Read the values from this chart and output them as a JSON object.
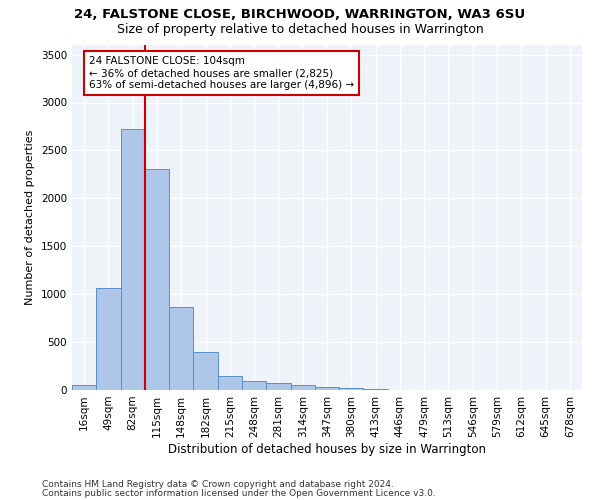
{
  "title1": "24, FALSTONE CLOSE, BIRCHWOOD, WARRINGTON, WA3 6SU",
  "title2": "Size of property relative to detached houses in Warrington",
  "xlabel": "Distribution of detached houses by size in Warrington",
  "ylabel": "Number of detached properties",
  "categories": [
    "16sqm",
    "49sqm",
    "82sqm",
    "115sqm",
    "148sqm",
    "182sqm",
    "215sqm",
    "248sqm",
    "281sqm",
    "314sqm",
    "347sqm",
    "380sqm",
    "413sqm",
    "446sqm",
    "479sqm",
    "513sqm",
    "546sqm",
    "579sqm",
    "612sqm",
    "645sqm",
    "678sqm"
  ],
  "values": [
    50,
    1060,
    2720,
    2310,
    870,
    400,
    150,
    90,
    70,
    50,
    30,
    20,
    10,
    5,
    3,
    2,
    1,
    1,
    0,
    0,
    0
  ],
  "bar_color": "#aec6e8",
  "bar_edge_color": "#5b8fc9",
  "vline_color": "#cc0000",
  "annotation_text": "24 FALSTONE CLOSE: 104sqm\n← 36% of detached houses are smaller (2,825)\n63% of semi-detached houses are larger (4,896) →",
  "annotation_box_color": "white",
  "annotation_box_edge_color": "#cc0000",
  "ylim": [
    0,
    3600
  ],
  "yticks": [
    0,
    500,
    1000,
    1500,
    2000,
    2500,
    3000,
    3500
  ],
  "footer1": "Contains HM Land Registry data © Crown copyright and database right 2024.",
  "footer2": "Contains public sector information licensed under the Open Government Licence v3.0.",
  "bg_color": "#eef2f9",
  "grid_color": "white",
  "title1_fontsize": 9.5,
  "title2_fontsize": 9,
  "xlabel_fontsize": 8.5,
  "ylabel_fontsize": 8,
  "footer_fontsize": 6.5,
  "tick_fontsize": 7.5,
  "annot_fontsize": 7.5
}
